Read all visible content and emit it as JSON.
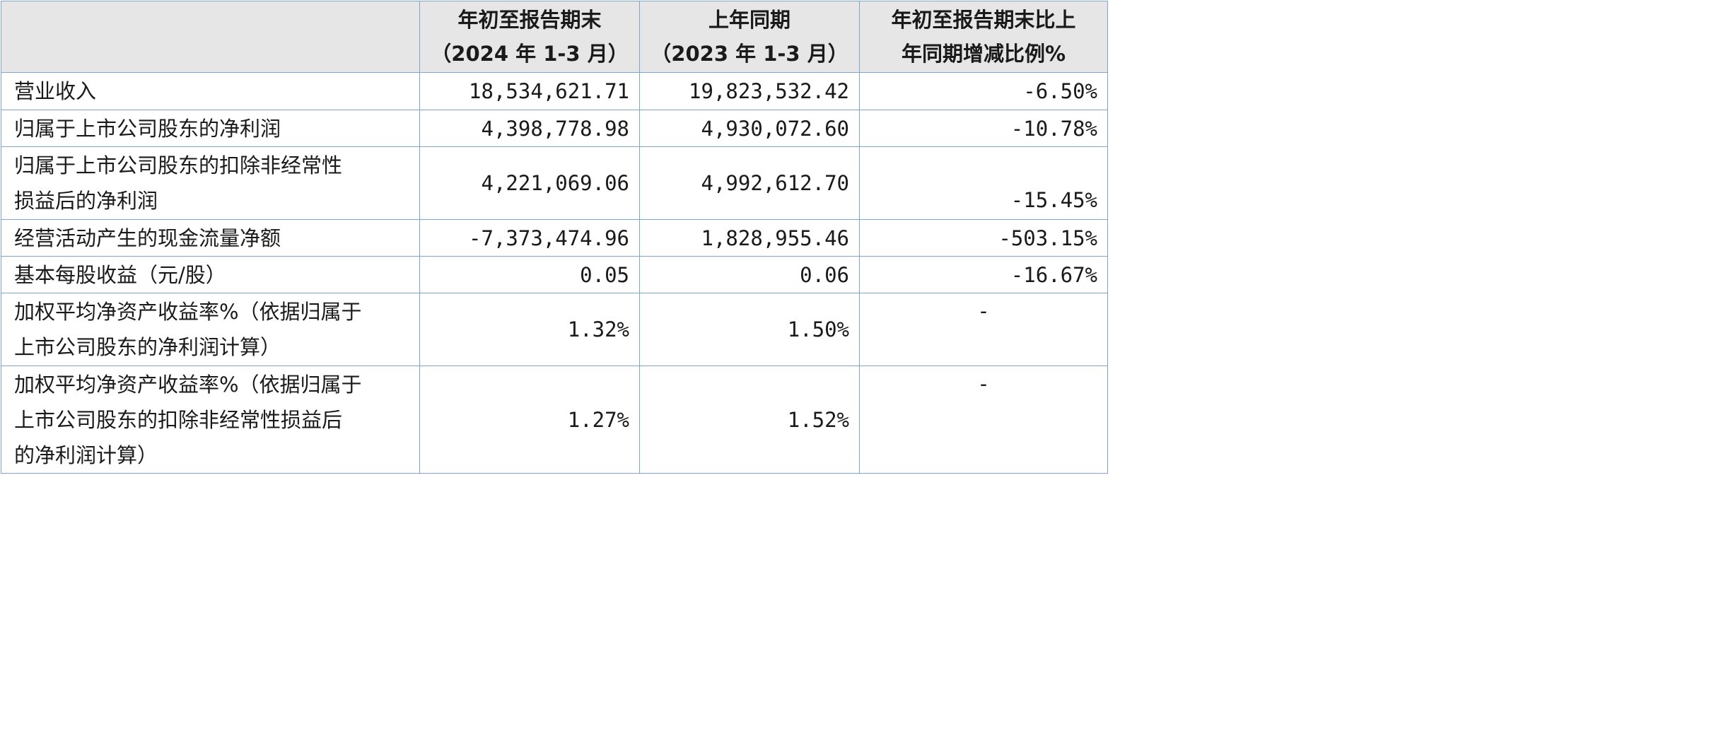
{
  "header": {
    "col1_line1": "年初至报告期末",
    "col1_line2": "（2024 年 1-3 月）",
    "col2_line1": "上年同期",
    "col2_line2": "（2023 年 1-3 月）",
    "col3_line1": "年初至报告期末比上",
    "col3_line2": "年同期增减比例%"
  },
  "rows": [
    {
      "label_lines": [
        "营业收入"
      ],
      "current": "18,534,621.71",
      "prior": "19,823,532.42",
      "change": "-6.50%"
    },
    {
      "label_lines": [
        "归属于上市公司股东的净利润"
      ],
      "current": "4,398,778.98",
      "prior": "4,930,072.60",
      "change": "-10.78%"
    },
    {
      "label_lines": [
        "归属于上市公司股东的扣除非经常性",
        "损益后的净利润"
      ],
      "current": "4,221,069.06",
      "prior": "4,992,612.70",
      "change": "-15.45%"
    },
    {
      "label_lines": [
        "经营活动产生的现金流量净额"
      ],
      "current": "-7,373,474.96",
      "prior": "1,828,955.46",
      "change": "-503.15%"
    },
    {
      "label_lines": [
        "基本每股收益（元/股）"
      ],
      "current": "0.05",
      "prior": "0.06",
      "change": "-16.67%"
    },
    {
      "label_lines": [
        "加权平均净资产收益率%（依据归属于",
        "上市公司股东的净利润计算）"
      ],
      "current": "1.32%",
      "prior": "1.50%",
      "change": "-"
    },
    {
      "label_lines": [
        "加权平均净资产收益率%（依据归属于",
        "上市公司股东的扣除非经常性损益后",
        "的净利润计算）"
      ],
      "current": "1.27%",
      "prior": "1.52%",
      "change": "-"
    }
  ]
}
